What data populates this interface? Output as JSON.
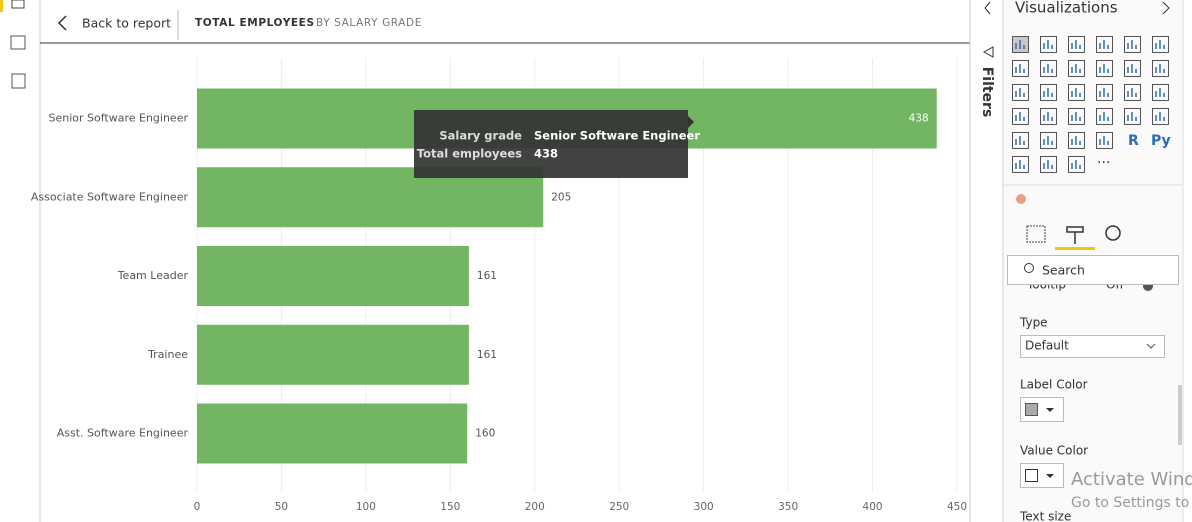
{
  "header": {
    "back": "Back to report",
    "title": "TOTAL EMPLOYEES",
    "subtitle": "BY SALARY GRADE"
  },
  "chart_data": {
    "type": "hbar",
    "categories": [
      "Senior Software Engineer",
      "Associate Software Engineer",
      "Team Leader",
      "Trainee",
      "Asst. Software Engineer"
    ],
    "values": [
      438,
      205,
      161,
      161,
      160
    ],
    "color": "#72b562",
    "xlim": [
      0,
      450
    ],
    "xticks": [
      0,
      50,
      100,
      150,
      200,
      250,
      300,
      350,
      400,
      450
    ],
    "grid": true
  },
  "tooltip": {
    "rows": [
      [
        "Salary grade",
        "Senior Software Engineer"
      ],
      [
        "Total employees",
        438
      ]
    ]
  },
  "filters": {
    "title": "Filters"
  },
  "visualizations": {
    "title": "Visualizations",
    "icon_labels": [
      "R",
      "Py"
    ],
    "more": "···",
    "search": "Search",
    "section": {
      "label": "Tooltip",
      "state": "Off"
    },
    "type_label": "Type",
    "type_value": "Default",
    "label_color": "Label Color",
    "value_color": "Value Color",
    "text_size": "Text size"
  },
  "watermark": {
    "line1": "Activate Wind",
    "line2": "Go to Settings to a"
  }
}
